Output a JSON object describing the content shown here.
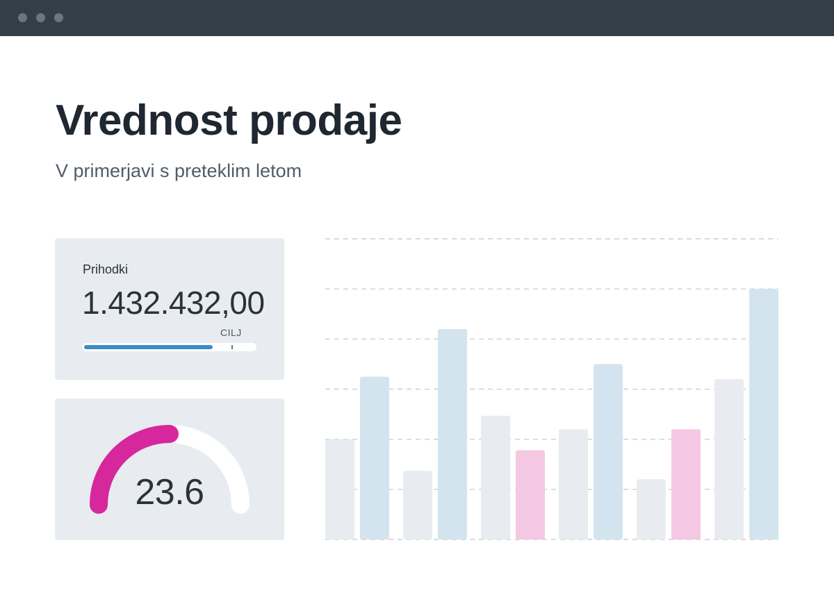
{
  "window": {
    "controls": [
      "window-dot",
      "window-dot",
      "window-dot"
    ]
  },
  "header": {
    "title": "Vrednost prodaje",
    "subtitle": "V primerjavi s preteklim letom"
  },
  "revenue_card": {
    "label": "Prihodki",
    "value": "1.432.432,00",
    "target_label": "CILJ",
    "progress_fraction": 0.75,
    "target_fraction": 0.86,
    "progress_color": "#3f8bc6"
  },
  "gauge_card": {
    "value": "23.6",
    "fill_fraction": 0.5,
    "arc_color": "#d6289c",
    "track_color": "#ffffff"
  },
  "chart_data": {
    "type": "bar",
    "grid": true,
    "ylim": [
      0,
      6
    ],
    "colors": {
      "gray": "#e8ecf0",
      "blue": "#d3e4ef",
      "pink": "#f4c8e3"
    },
    "groups": [
      {
        "bars": [
          {
            "value": 2.0,
            "color": "gray"
          },
          {
            "value": 3.25,
            "color": "blue"
          }
        ]
      },
      {
        "bars": [
          {
            "value": 1.37,
            "color": "gray"
          },
          {
            "value": 4.2,
            "color": "blue"
          }
        ]
      },
      {
        "bars": [
          {
            "value": 2.47,
            "color": "gray"
          },
          {
            "value": 1.78,
            "color": "pink"
          }
        ]
      },
      {
        "bars": [
          {
            "value": 2.2,
            "color": "gray"
          },
          {
            "value": 3.5,
            "color": "blue"
          }
        ]
      },
      {
        "bars": [
          {
            "value": 1.2,
            "color": "gray"
          },
          {
            "value": 2.2,
            "color": "pink"
          }
        ]
      },
      {
        "bars": [
          {
            "value": 3.2,
            "color": "gray"
          },
          {
            "value": 5.0,
            "color": "blue"
          }
        ]
      }
    ]
  }
}
